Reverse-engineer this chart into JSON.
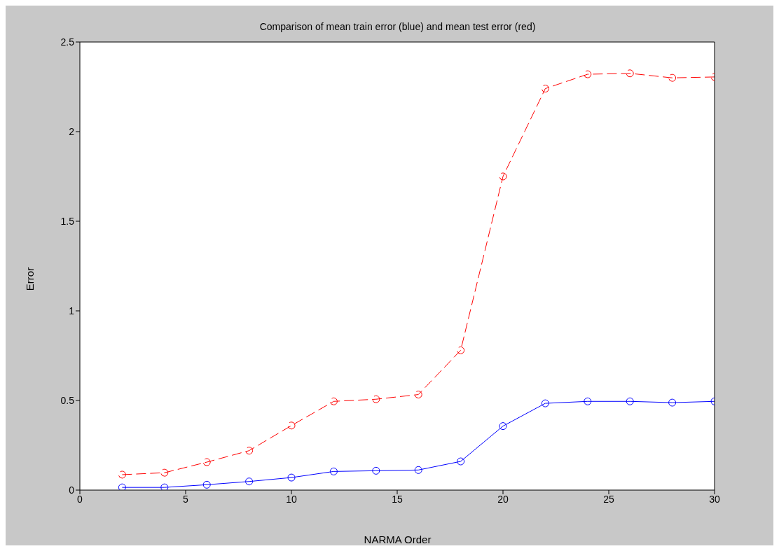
{
  "chart_data": {
    "type": "line",
    "title": "Comparison of mean train error (blue) and mean test error (red)",
    "xlabel": "NARMA Order",
    "ylabel": "Error",
    "x": [
      2,
      4,
      6,
      8,
      10,
      12,
      14,
      16,
      18,
      20,
      22,
      24,
      26,
      28,
      30
    ],
    "series": [
      {
        "color": "#ff0000",
        "line_style": "dashed",
        "values": [
          0.086,
          0.097,
          0.156,
          0.22,
          0.36,
          0.495,
          0.507,
          0.533,
          0.78,
          1.75,
          2.24,
          2.32,
          2.325,
          2.3,
          2.305
        ]
      },
      {
        "color": "#0000ff",
        "line_style": "solid",
        "values": [
          0.015,
          0.015,
          0.03,
          0.048,
          0.07,
          0.104,
          0.108,
          0.112,
          0.16,
          0.357,
          0.484,
          0.495,
          0.495,
          0.488,
          0.495
        ]
      }
    ],
    "xlim": [
      0,
      30
    ],
    "xticks": [
      0,
      5,
      10,
      15,
      20,
      25,
      30
    ],
    "ylim": [
      0,
      2.5
    ],
    "yticks": [
      0,
      0.5,
      1,
      1.5,
      2,
      2.5
    ],
    "grid": false,
    "marker": "circle"
  }
}
